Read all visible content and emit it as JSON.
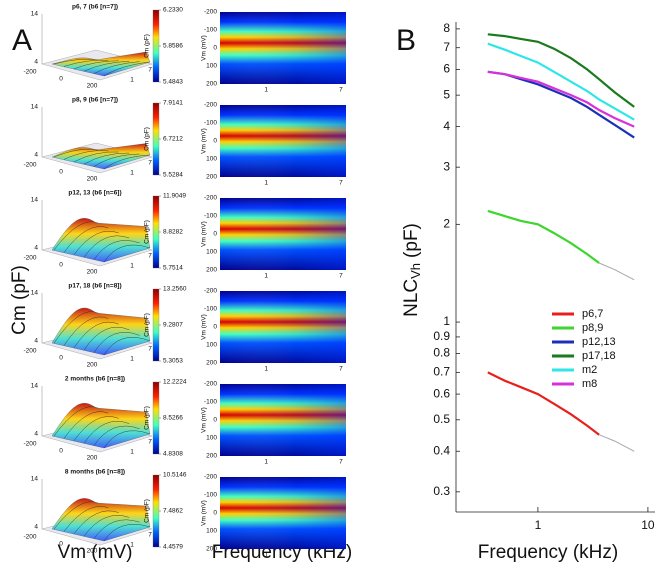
{
  "panel_a": {
    "label": "A",
    "y_label": "Cm (pF)",
    "x_label_surface": "Vm (mV)",
    "x_label_heatmap": "Frequency (kHz)",
    "surface_zticks": [
      14,
      4
    ],
    "surface_vticks": [
      -200,
      0,
      200
    ],
    "surface_fticks": [
      1,
      7
    ],
    "colorbar_label": "Cm (pF)",
    "heatmap_y_label": "Vm (mV)",
    "heatmap_yticks": [
      -200,
      -100,
      0,
      100,
      200
    ],
    "heatmap_xticks": [
      1,
      7
    ],
    "heatmap_xlim": [
      0.3,
      8
    ],
    "rows": [
      {
        "title": "p6, 7 (b6 [n=7])",
        "colorbar_ticks": [
          {
            "value": 6.233,
            "label": "6.2330"
          },
          {
            "value": 5.8586,
            "label": "5.8586"
          },
          {
            "value": 5.4843,
            "label": "5.4843"
          }
        ]
      },
      {
        "title": "p8, 9 (b6 [n=7])",
        "colorbar_ticks": [
          {
            "value": 7.9141,
            "label": "7.9141"
          },
          {
            "value": 6.7212,
            "label": "6.7212"
          },
          {
            "value": 5.5284,
            "label": "5.5284"
          }
        ]
      },
      {
        "title": "p12, 13 (b6 [n=6])",
        "colorbar_ticks": [
          {
            "value": 11.9049,
            "label": "11.9049"
          },
          {
            "value": 8.8282,
            "label": "8.8282"
          },
          {
            "value": 5.7514,
            "label": "5.7514"
          }
        ]
      },
      {
        "title": "p17, 18 (b6 [n=8])",
        "colorbar_ticks": [
          {
            "value": 13.256,
            "label": "13.2560"
          },
          {
            "value": 9.2807,
            "label": "9.2807"
          },
          {
            "value": 5.3053,
            "label": "5.3053"
          }
        ]
      },
      {
        "title": "2 months (b6 [n=8])",
        "colorbar_ticks": [
          {
            "value": 12.2224,
            "label": "12.2224"
          },
          {
            "value": 8.5266,
            "label": "8.5266"
          },
          {
            "value": 4.8308,
            "label": "4.8308"
          }
        ]
      },
      {
        "title": "8 months (b6 [n=8])",
        "colorbar_ticks": [
          {
            "value": 10.5146,
            "label": "10.5146"
          },
          {
            "value": 7.4862,
            "label": "7.4862"
          },
          {
            "value": 4.4579,
            "label": "4.4579"
          }
        ]
      }
    ]
  },
  "chart_data": {
    "type": "line",
    "panel_label": "B",
    "x_label": "Frequency (kHz)",
    "y_label_main": "NLC",
    "y_label_sub": "Vh",
    "y_label_unit": "(pF)",
    "xscale": "log",
    "yscale": "log",
    "legend": "right",
    "x": [
      0.35,
      0.5,
      0.7,
      1,
      1.4,
      2,
      2.8,
      3.6,
      5,
      7.5
    ],
    "series": [
      {
        "name": "p6,7",
        "color": "#e8201c",
        "values": [
          0.7,
          0.66,
          0.63,
          0.6,
          0.56,
          0.52,
          0.48,
          0.45,
          null,
          null
        ]
      },
      {
        "name": "p8,9",
        "color": "#3cd62e",
        "values": [
          2.2,
          2.12,
          2.05,
          2.0,
          1.88,
          1.75,
          1.62,
          1.52,
          null,
          null
        ]
      },
      {
        "name": "p12,13",
        "color": "#1c2fb8",
        "values": [
          5.9,
          5.8,
          5.6,
          5.4,
          5.15,
          4.9,
          4.6,
          4.35,
          4.05,
          3.7
        ]
      },
      {
        "name": "p17,18",
        "color": "#1a7a1e",
        "values": [
          7.7,
          7.6,
          7.45,
          7.3,
          6.95,
          6.5,
          6.0,
          5.6,
          5.1,
          4.6
        ]
      },
      {
        "name": "m2",
        "color": "#2fe6e6",
        "values": [
          7.2,
          6.9,
          6.6,
          6.3,
          5.9,
          5.5,
          5.15,
          4.85,
          4.55,
          4.2
        ]
      },
      {
        "name": "m8",
        "color": "#d931d9",
        "values": [
          5.9,
          5.8,
          5.65,
          5.5,
          5.25,
          5.0,
          4.75,
          4.5,
          4.25,
          4.0
        ]
      },
      {
        "color": "#a8a8a8",
        "values": [
          null,
          null,
          null,
          null,
          null,
          null,
          null,
          1.52,
          1.45,
          1.35
        ]
      },
      {
        "color": "#a8a8a8",
        "values": [
          null,
          null,
          null,
          null,
          null,
          null,
          null,
          0.45,
          0.43,
          0.4
        ]
      }
    ],
    "xlim": [
      0.18,
      11.6
    ],
    "ylim": [
      0.26,
      8.4
    ],
    "xticks": [
      1,
      10
    ],
    "yticks": [
      0.3,
      0.4,
      0.5,
      0.6,
      0.7,
      0.8,
      0.9,
      1,
      2,
      3,
      4,
      5,
      6,
      7,
      8
    ]
  }
}
